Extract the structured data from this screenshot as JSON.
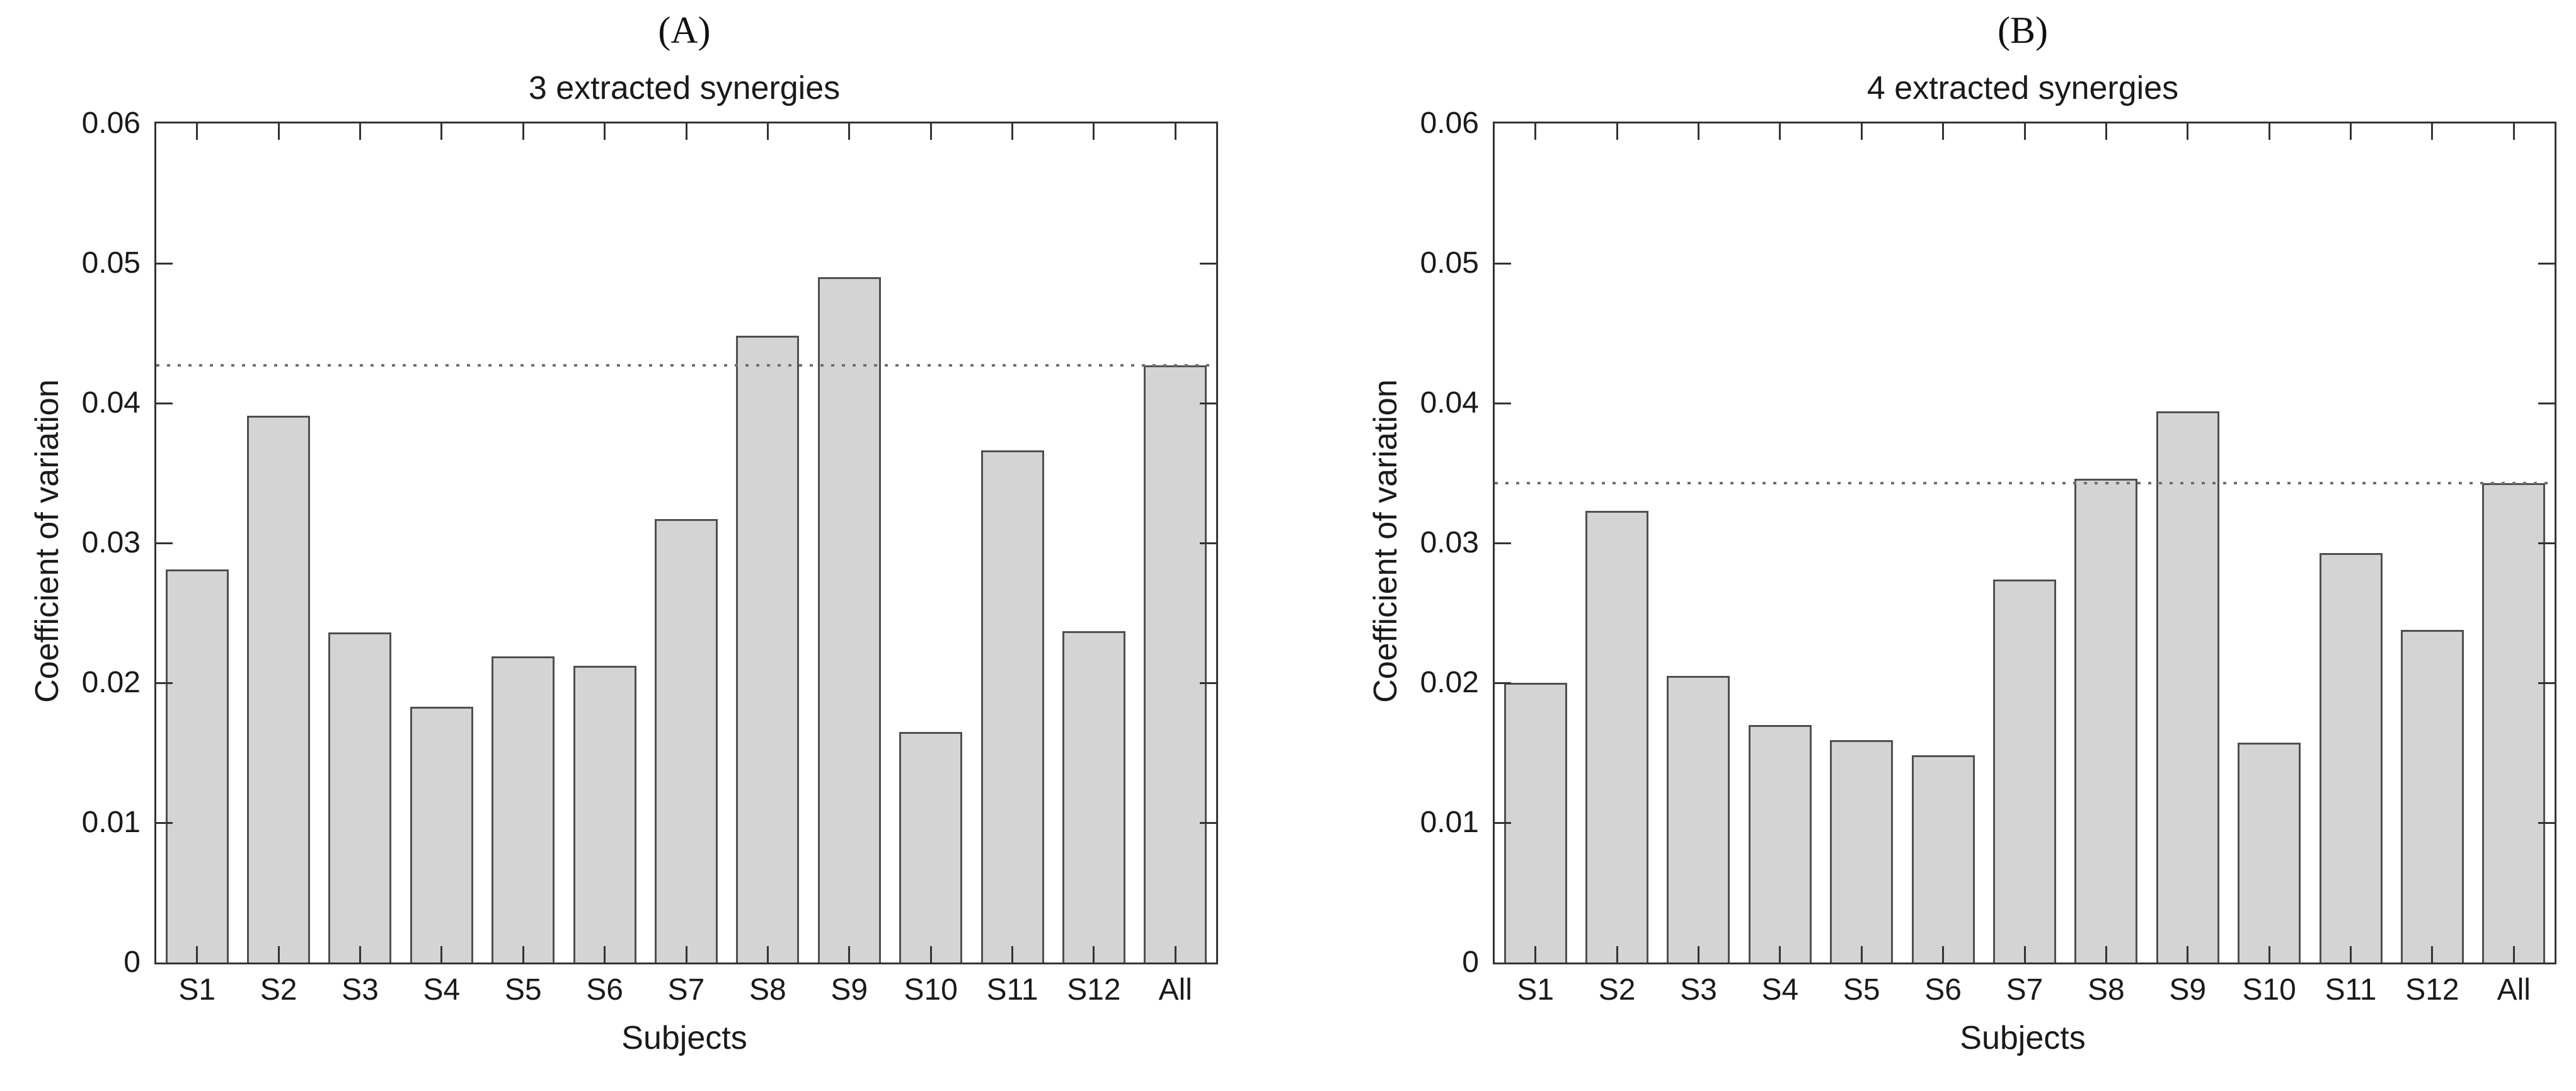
{
  "colors": {
    "bar_fill": "#d4d4d4",
    "bar_edge": "#4f4f4f",
    "axis": "#333333",
    "dotted_line": "#6e6e6e",
    "text": "#1a1a1a",
    "background": "#ffffff"
  },
  "chart_data": [
    {
      "type": "bar",
      "panel_label": "(A)",
      "title": "3 extracted synergies",
      "xlabel": "Subjects",
      "ylabel": "Coefficient of variation",
      "categories": [
        "S1",
        "S2",
        "S3",
        "S4",
        "S5",
        "S6",
        "S7",
        "S8",
        "S9",
        "S10",
        "S11",
        "S12",
        "All"
      ],
      "values": [
        0.0281,
        0.0391,
        0.0236,
        0.0183,
        0.0219,
        0.0212,
        0.0317,
        0.0448,
        0.049,
        0.0165,
        0.0366,
        0.0237,
        0.0427
      ],
      "mean_dotted_line": 0.0427,
      "ylim": [
        0,
        0.06
      ],
      "yticks": [
        0,
        0.01,
        0.02,
        0.03,
        0.04,
        0.05,
        0.06
      ],
      "ytick_labels": [
        "0",
        "0.01",
        "0.02",
        "0.03",
        "0.04",
        "0.05",
        "0.06"
      ],
      "grid": false,
      "legend": "none"
    },
    {
      "type": "bar",
      "panel_label": "(B)",
      "title": "4 extracted synergies",
      "xlabel": "Subjects",
      "ylabel": "Coefficient of variation",
      "categories": [
        "S1",
        "S2",
        "S3",
        "S4",
        "S5",
        "S6",
        "S7",
        "S8",
        "S9",
        "S10",
        "S11",
        "S12",
        "All"
      ],
      "values": [
        0.02,
        0.0323,
        0.0205,
        0.017,
        0.0159,
        0.0148,
        0.0274,
        0.0346,
        0.0394,
        0.0157,
        0.0293,
        0.0238,
        0.0343
      ],
      "mean_dotted_line": 0.0343,
      "ylim": [
        0,
        0.06
      ],
      "yticks": [
        0,
        0.01,
        0.02,
        0.03,
        0.04,
        0.05,
        0.06
      ],
      "ytick_labels": [
        "0",
        "0.01",
        "0.02",
        "0.03",
        "0.04",
        "0.05",
        "0.06"
      ],
      "grid": false,
      "legend": "none"
    }
  ]
}
